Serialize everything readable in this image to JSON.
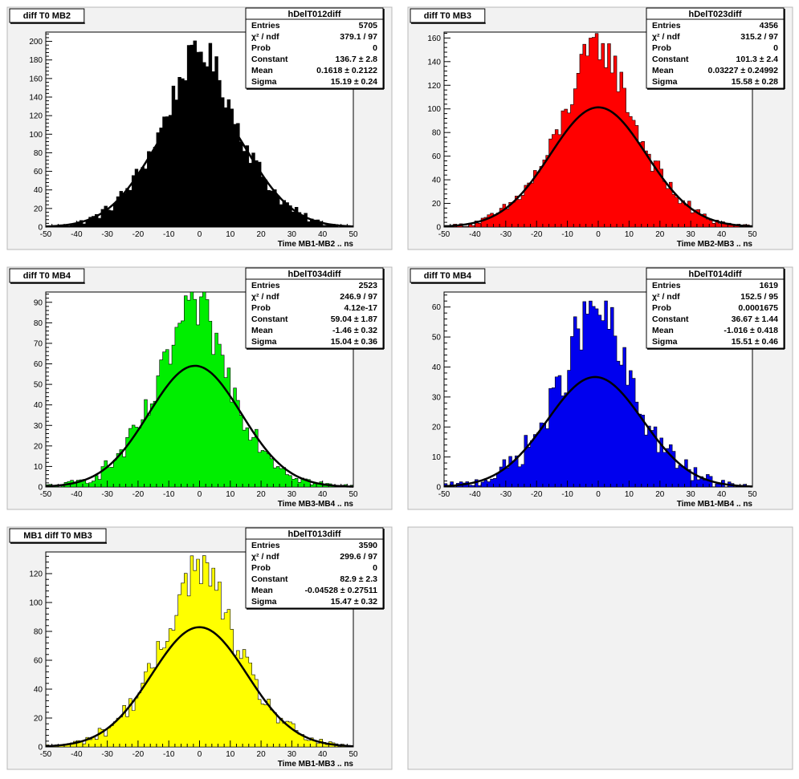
{
  "colors": {
    "window_bg": "#ffffff",
    "pad_bg": "#f2f2f2",
    "pad_border": "#b8b8b8",
    "frame_bg": "#ffffff",
    "frame_border": "#000000",
    "fit_line": "#000000"
  },
  "chart_data": [
    {
      "type": "bar",
      "pad_title": "diff T0 MB2",
      "stats_title": "hDelT012diff",
      "stats": [
        {
          "label": "Entries",
          "value": "5705"
        },
        {
          "label": "χ² / ndf",
          "value": "379.1 / 97"
        },
        {
          "label": "Prob",
          "value": "0"
        },
        {
          "label": "Constant",
          "value": "136.7 ± 2.8"
        },
        {
          "label": "Mean",
          "value": "0.1618 ± 0.2122"
        },
        {
          "label": "Sigma",
          "value": "15.19 ± 0.24"
        }
      ],
      "xlabel": "Time MB1-MB2  ..  ns",
      "xlim": [
        -50,
        50
      ],
      "ylim": [
        0,
        210
      ],
      "yticks": [
        0,
        20,
        40,
        60,
        80,
        100,
        120,
        140,
        160,
        180,
        200
      ],
      "xticks": [
        -50,
        -40,
        -30,
        -20,
        -10,
        0,
        10,
        20,
        30,
        40,
        50
      ],
      "fill": "#000000",
      "bins": 100,
      "fit": {
        "constant": 136.7,
        "mean": 0.1618,
        "sigma": 15.19
      },
      "peak_value": 196
    },
    {
      "type": "bar",
      "pad_title": "diff T0 MB3",
      "stats_title": "hDelT023diff",
      "stats": [
        {
          "label": "Entries",
          "value": "4356"
        },
        {
          "label": "χ² / ndf",
          "value": "315.2 / 97"
        },
        {
          "label": "Prob",
          "value": "0"
        },
        {
          "label": "Constant",
          "value": "101.3 ± 2.4"
        },
        {
          "label": "Mean",
          "value": "0.03227 ± 0.24992"
        },
        {
          "label": "Sigma",
          "value": "15.58 ± 0.28"
        }
      ],
      "xlabel": "Time MB2-MB3  ..  ns",
      "xlim": [
        -50,
        50
      ],
      "ylim": [
        0,
        165
      ],
      "yticks": [
        0,
        20,
        40,
        60,
        80,
        100,
        120,
        140,
        160
      ],
      "xticks": [
        -50,
        -40,
        -30,
        -20,
        -10,
        0,
        10,
        20,
        30,
        40,
        50
      ],
      "fill": "#ff0000",
      "bins": 100,
      "fit": {
        "constant": 101.3,
        "mean": 0.03227,
        "sigma": 15.58
      },
      "peak_value": 160
    },
    {
      "type": "bar",
      "pad_title": "diff T0 MB4",
      "stats_title": "hDelT034diff",
      "stats": [
        {
          "label": "Entries",
          "value": "2523"
        },
        {
          "label": "χ² / ndf",
          "value": "246.9 / 97"
        },
        {
          "label": "Prob",
          "value": "4.12e-17"
        },
        {
          "label": "Constant",
          "value": "59.04 ± 1.87"
        },
        {
          "label": "Mean",
          "value": "-1.46 ± 0.32"
        },
        {
          "label": "Sigma",
          "value": "15.04 ± 0.36"
        }
      ],
      "xlabel": "Time MB3-MB4  ..  ns",
      "xlim": [
        -50,
        50
      ],
      "ylim": [
        0,
        95
      ],
      "yticks": [
        0,
        10,
        20,
        30,
        40,
        50,
        60,
        70,
        80,
        90
      ],
      "xticks": [
        -50,
        -40,
        -30,
        -20,
        -10,
        0,
        10,
        20,
        30,
        40,
        50
      ],
      "fill": "#00ee00",
      "bins": 100,
      "fit": {
        "constant": 59.04,
        "mean": -1.46,
        "sigma": 15.04
      },
      "peak_value": 91
    },
    {
      "type": "bar",
      "pad_title": "diff T0 MB4",
      "stats_title": "hDelT014diff",
      "stats": [
        {
          "label": "Entries",
          "value": "1619"
        },
        {
          "label": "χ² / ndf",
          "value": "152.5 / 95"
        },
        {
          "label": "Prob",
          "value": "0.0001675"
        },
        {
          "label": "Constant",
          "value": "36.67 ± 1.44"
        },
        {
          "label": "Mean",
          "value": "-1.016 ± 0.418"
        },
        {
          "label": "Sigma",
          "value": "15.51 ± 0.46"
        }
      ],
      "xlabel": "Time MB1-MB4  ..  ns",
      "xlim": [
        -50,
        50
      ],
      "ylim": [
        0,
        65
      ],
      "yticks": [
        0,
        10,
        20,
        30,
        40,
        50,
        60
      ],
      "xticks": [
        -50,
        -40,
        -30,
        -20,
        -10,
        0,
        10,
        20,
        30,
        40,
        50
      ],
      "fill": "#0000ee",
      "bins": 100,
      "fit": {
        "constant": 36.67,
        "mean": -1.016,
        "sigma": 15.51
      },
      "peak_value": 62
    },
    {
      "type": "bar",
      "pad_title": "MB1 diff T0 MB3",
      "stats_title": "hDelT013diff",
      "stats": [
        {
          "label": "Entries",
          "value": "3590"
        },
        {
          "label": "χ² / ndf",
          "value": "299.6 / 97"
        },
        {
          "label": "Prob",
          "value": "0"
        },
        {
          "label": "Constant",
          "value": "82.9 ± 2.3"
        },
        {
          "label": "Mean",
          "value": "-0.04528 ± 0.27511"
        },
        {
          "label": "Sigma",
          "value": "15.47 ± 0.32"
        }
      ],
      "xlabel": "Time MB1-MB3  ..  ns",
      "xlim": [
        -50,
        50
      ],
      "ylim": [
        0,
        135
      ],
      "yticks": [
        0,
        20,
        40,
        60,
        80,
        100,
        120
      ],
      "xticks": [
        -50,
        -40,
        -30,
        -20,
        -10,
        0,
        10,
        20,
        30,
        40,
        50
      ],
      "fill": "#ffff00",
      "bins": 100,
      "fit": {
        "constant": 82.9,
        "mean": -0.04528,
        "sigma": 15.47
      },
      "peak_value": 130
    }
  ]
}
